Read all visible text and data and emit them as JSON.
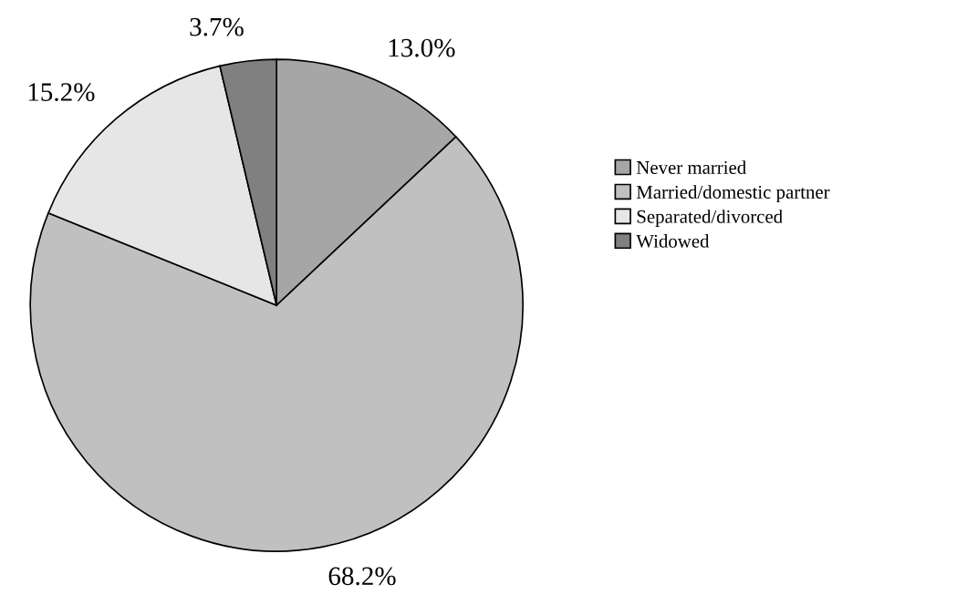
{
  "chart_data": {
    "type": "pie",
    "categories": [
      "Never married",
      "Married/domestic partner",
      "Separated/divorced",
      "Widowed"
    ],
    "values": [
      13.0,
      68.2,
      15.2,
      3.7
    ],
    "value_labels": [
      "13.0%",
      "68.2%",
      "15.2%",
      "3.7%"
    ],
    "colors": [
      "#a6a6a6",
      "#c0c0c0",
      "#e6e6e6",
      "#808080"
    ],
    "legend": "right"
  }
}
